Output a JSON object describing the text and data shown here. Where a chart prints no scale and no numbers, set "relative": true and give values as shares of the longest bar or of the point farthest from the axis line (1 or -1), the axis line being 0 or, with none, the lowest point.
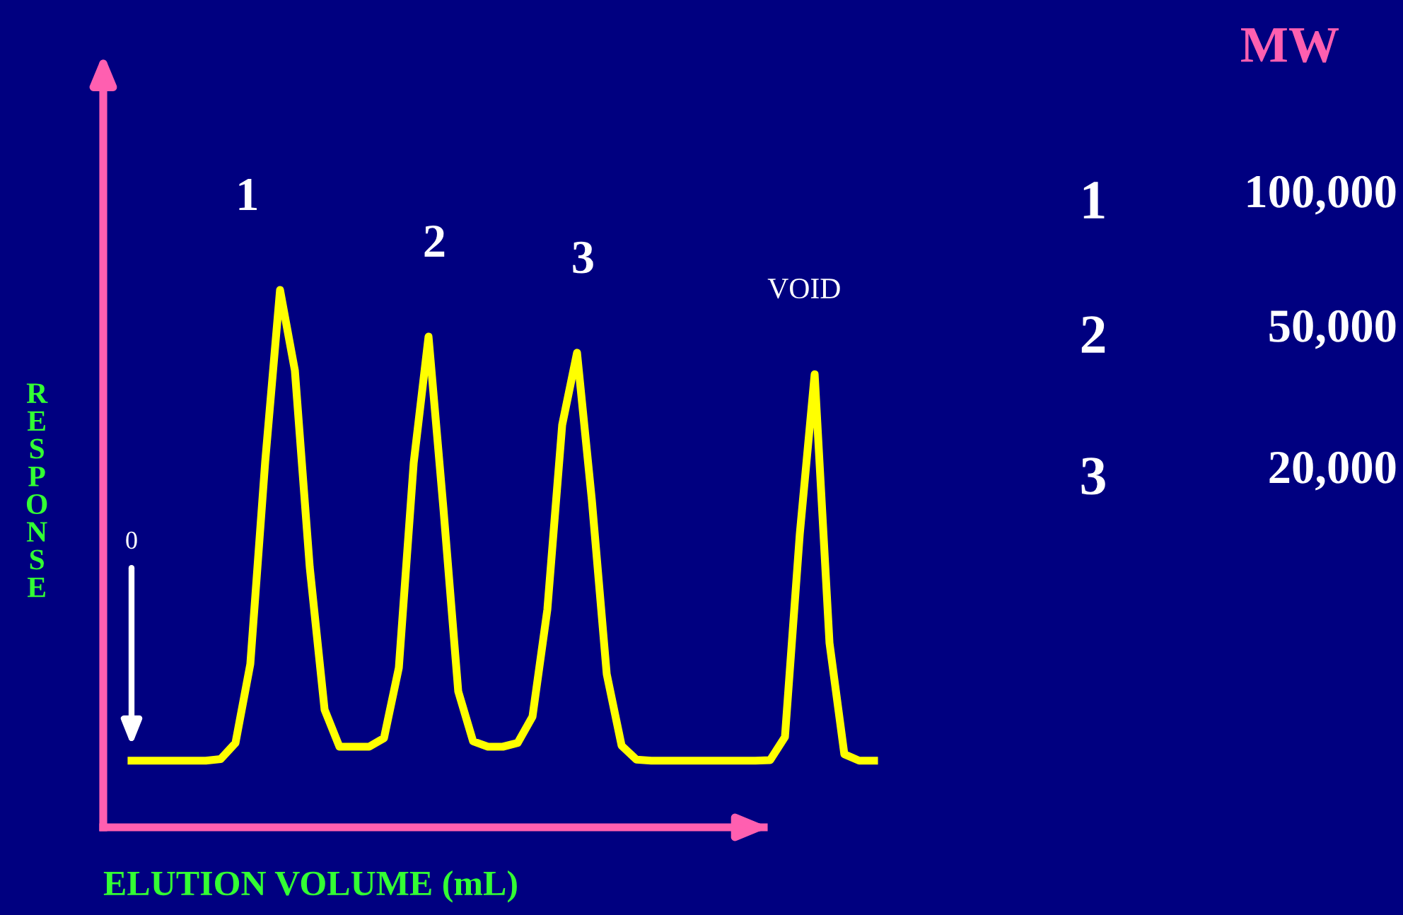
{
  "chart_data": {
    "type": "line",
    "relative": true,
    "xlabel": "ELUTION VOLUME (mL)",
    "ylabel": "RESPONSE",
    "categories": [
      null,
      null,
      null,
      null,
      null,
      null,
      null,
      null,
      null,
      null,
      null,
      null,
      null,
      null,
      null,
      null,
      null,
      null,
      null,
      null,
      null,
      null,
      null,
      null,
      null,
      null,
      null,
      null,
      null,
      null,
      null,
      null,
      null,
      null,
      null,
      null,
      null,
      null,
      null,
      null,
      null,
      null,
      null,
      null,
      null,
      null,
      null,
      null,
      null,
      null,
      null
    ],
    "series": [
      {
        "color": "#ffff00",
        "values": [
          0.124,
          0.124,
          0.124,
          0.124,
          0.124,
          0.124,
          0.127,
          0.157,
          0.304,
          0.68,
          1.0,
          0.85,
          0.484,
          0.219,
          0.15,
          0.15,
          0.15,
          0.166,
          0.297,
          0.678,
          0.913,
          0.594,
          0.253,
          0.16,
          0.15,
          0.15,
          0.157,
          0.206,
          0.405,
          0.749,
          0.883,
          0.608,
          0.285,
          0.152,
          0.126,
          0.124,
          0.124,
          0.124,
          0.124,
          0.124,
          0.124,
          0.124,
          0.124,
          0.125,
          0.168,
          0.546,
          0.843,
          0.343,
          0.136,
          0.124,
          0.124
        ]
      }
    ],
    "annotations": [
      "1",
      "2",
      "3",
      "VOID",
      "0",
      "MW",
      "1",
      "100,000",
      "2",
      "50,000",
      "3",
      "20,000"
    ],
    "legend": false,
    "marker": "none",
    "line_style": "solid"
  }
}
